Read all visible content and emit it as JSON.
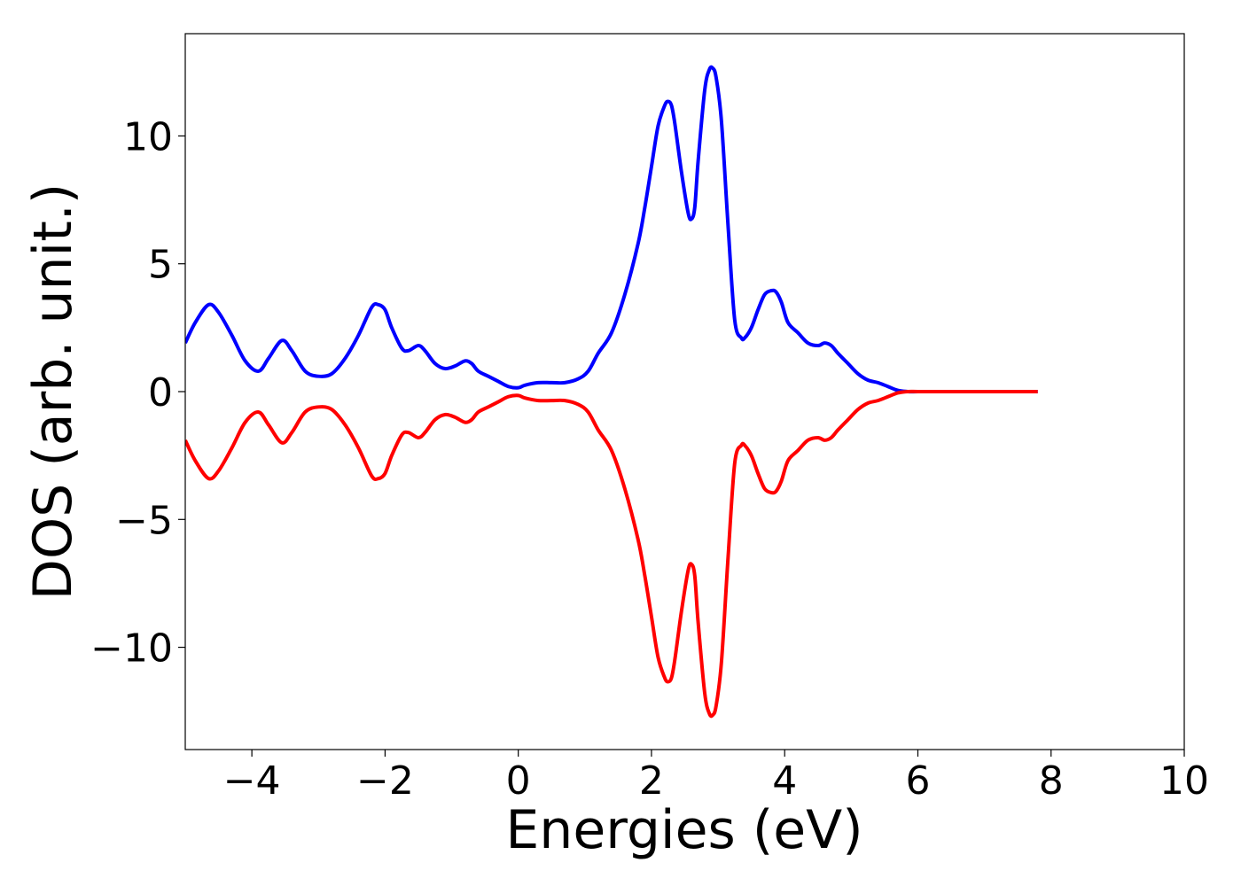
{
  "chart_data": {
    "type": "line",
    "title": "",
    "xlabel": "Energies (eV)",
    "ylabel": "DOS (arb. unit.)",
    "xlim": [
      -5,
      10
    ],
    "ylim": [
      -14,
      14
    ],
    "grid": false,
    "x_ticks": [
      -4,
      -2,
      0,
      2,
      4,
      6,
      8,
      10
    ],
    "x_tick_labels": [
      "−4",
      "−2",
      "0",
      "2",
      "4",
      "6",
      "8",
      "10"
    ],
    "y_ticks": [
      10,
      5,
      0,
      -5,
      -10
    ],
    "y_tick_labels": [
      "10",
      "5",
      "0",
      "−5",
      "−10"
    ],
    "series": [
      {
        "color": "#0000ff",
        "x": [
          -5.0,
          -4.85,
          -4.65,
          -4.5,
          -4.3,
          -4.1,
          -3.9,
          -3.75,
          -3.55,
          -3.4,
          -3.2,
          -3.0,
          -2.8,
          -2.6,
          -2.4,
          -2.2,
          -2.1,
          -2.0,
          -1.9,
          -1.75,
          -1.65,
          -1.5,
          -1.4,
          -1.25,
          -1.1,
          -0.95,
          -0.8,
          -0.7,
          -0.6,
          -0.45,
          -0.3,
          -0.15,
          0.0,
          0.1,
          0.3,
          0.5,
          0.7,
          0.9,
          1.05,
          1.2,
          1.4,
          1.6,
          1.8,
          1.9,
          2.0,
          2.1,
          2.2,
          2.25,
          2.3,
          2.35,
          2.45,
          2.55,
          2.6,
          2.65,
          2.7,
          2.8,
          2.87,
          2.92,
          2.97,
          3.05,
          3.15,
          3.25,
          3.35,
          3.4,
          3.5,
          3.6,
          3.7,
          3.8,
          3.87,
          3.95,
          4.05,
          4.2,
          4.35,
          4.5,
          4.6,
          4.7,
          4.8,
          4.95,
          5.1,
          5.25,
          5.4,
          5.55,
          5.7,
          5.85,
          6.0,
          6.3,
          7.0,
          7.8
        ],
        "y": [
          1.9,
          2.7,
          3.4,
          3.1,
          2.2,
          1.2,
          0.8,
          1.3,
          2.0,
          1.6,
          0.8,
          0.6,
          0.7,
          1.3,
          2.2,
          3.3,
          3.4,
          3.2,
          2.5,
          1.7,
          1.6,
          1.8,
          1.6,
          1.1,
          0.9,
          1.0,
          1.2,
          1.1,
          0.8,
          0.6,
          0.4,
          0.2,
          0.15,
          0.25,
          0.35,
          0.35,
          0.35,
          0.5,
          0.8,
          1.5,
          2.3,
          3.8,
          5.8,
          7.2,
          8.8,
          10.4,
          11.2,
          11.35,
          11.2,
          10.5,
          8.6,
          7.0,
          6.75,
          7.2,
          9.0,
          11.8,
          12.6,
          12.65,
          12.3,
          10.6,
          6.5,
          2.8,
          2.1,
          2.1,
          2.5,
          3.2,
          3.8,
          3.95,
          3.9,
          3.5,
          2.7,
          2.3,
          1.9,
          1.8,
          1.9,
          1.8,
          1.5,
          1.1,
          0.7,
          0.45,
          0.35,
          0.2,
          0.05,
          0.0,
          0.0,
          0.0,
          0.0,
          0.0
        ]
      },
      {
        "color": "#ff0000",
        "x": [
          -5.0,
          -4.85,
          -4.65,
          -4.5,
          -4.3,
          -4.1,
          -3.9,
          -3.75,
          -3.55,
          -3.4,
          -3.2,
          -3.0,
          -2.8,
          -2.6,
          -2.4,
          -2.2,
          -2.1,
          -2.0,
          -1.9,
          -1.75,
          -1.65,
          -1.5,
          -1.4,
          -1.25,
          -1.1,
          -0.95,
          -0.8,
          -0.7,
          -0.6,
          -0.45,
          -0.3,
          -0.15,
          0.0,
          0.1,
          0.3,
          0.5,
          0.7,
          0.9,
          1.05,
          1.2,
          1.4,
          1.6,
          1.8,
          1.9,
          2.0,
          2.1,
          2.2,
          2.25,
          2.3,
          2.35,
          2.45,
          2.55,
          2.6,
          2.65,
          2.7,
          2.8,
          2.87,
          2.92,
          2.97,
          3.05,
          3.15,
          3.25,
          3.35,
          3.4,
          3.5,
          3.6,
          3.7,
          3.8,
          3.87,
          3.95,
          4.05,
          4.2,
          4.35,
          4.5,
          4.6,
          4.7,
          4.8,
          4.95,
          5.1,
          5.25,
          5.4,
          5.55,
          5.7,
          5.85,
          6.0,
          6.3,
          7.0,
          7.8
        ],
        "y": [
          -1.9,
          -2.7,
          -3.4,
          -3.1,
          -2.2,
          -1.2,
          -0.8,
          -1.3,
          -2.0,
          -1.6,
          -0.8,
          -0.6,
          -0.7,
          -1.3,
          -2.2,
          -3.3,
          -3.4,
          -3.2,
          -2.5,
          -1.7,
          -1.6,
          -1.8,
          -1.6,
          -1.1,
          -0.9,
          -1.0,
          -1.2,
          -1.1,
          -0.8,
          -0.6,
          -0.4,
          -0.2,
          -0.15,
          -0.25,
          -0.35,
          -0.35,
          -0.35,
          -0.5,
          -0.8,
          -1.5,
          -2.3,
          -3.8,
          -5.8,
          -7.2,
          -8.8,
          -10.4,
          -11.2,
          -11.35,
          -11.2,
          -10.5,
          -8.6,
          -7.0,
          -6.75,
          -7.2,
          -9.0,
          -11.8,
          -12.6,
          -12.65,
          -12.3,
          -10.6,
          -6.5,
          -2.8,
          -2.1,
          -2.1,
          -2.5,
          -3.2,
          -3.8,
          -3.95,
          -3.9,
          -3.5,
          -2.7,
          -2.3,
          -1.9,
          -1.8,
          -1.9,
          -1.8,
          -1.5,
          -1.1,
          -0.7,
          -0.45,
          -0.35,
          -0.2,
          -0.05,
          0.0,
          0.0,
          0.0,
          0.0,
          0.0
        ]
      }
    ]
  }
}
